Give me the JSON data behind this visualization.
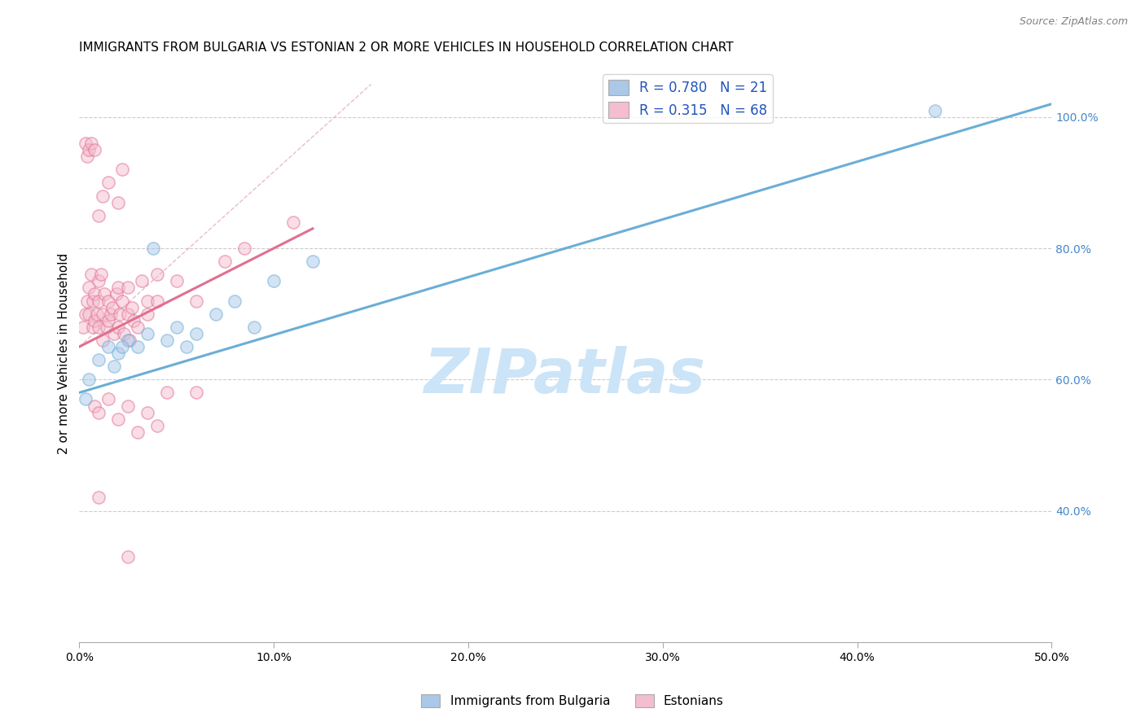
{
  "title": "IMMIGRANTS FROM BULGARIA VS ESTONIAN 2 OR MORE VEHICLES IN HOUSEHOLD CORRELATION CHART",
  "source": "Source: ZipAtlas.com",
  "ylabel": "2 or more Vehicles in Household",
  "x_min": 0.0,
  "x_max": 50.0,
  "y_min": 20.0,
  "y_max": 108.0,
  "x_ticks": [
    0.0,
    10.0,
    20.0,
    30.0,
    40.0,
    50.0
  ],
  "x_tick_labels": [
    "0.0%",
    "10.0%",
    "20.0%",
    "30.0%",
    "40.0%",
    "50.0%"
  ],
  "y_ticks_right": [
    40.0,
    60.0,
    80.0,
    100.0
  ],
  "y_tick_labels_right": [
    "40.0%",
    "60.0%",
    "80.0%",
    "100.0%"
  ],
  "legend_entries": [
    {
      "label": "R = 0.780   N = 21",
      "color": "#aac8e8"
    },
    {
      "label": "R = 0.315   N = 68",
      "color": "#f5bdd0"
    }
  ],
  "legend_bottom": [
    {
      "label": "Immigrants from Bulgaria",
      "color": "#aac8e8"
    },
    {
      "label": "Estonians",
      "color": "#f5bdd0"
    }
  ],
  "watermark": "ZIPatlas",
  "blue_scatter_x": [
    0.3,
    0.5,
    1.0,
    1.5,
    2.0,
    2.5,
    3.0,
    3.5,
    4.5,
    5.0,
    6.0,
    7.0,
    8.0,
    9.0,
    10.0,
    12.0,
    44.0,
    1.8,
    2.2,
    3.8,
    5.5
  ],
  "blue_scatter_y": [
    57.0,
    60.0,
    63.0,
    65.0,
    64.0,
    66.0,
    65.0,
    67.0,
    66.0,
    68.0,
    67.0,
    70.0,
    72.0,
    68.0,
    75.0,
    78.0,
    101.0,
    62.0,
    65.0,
    80.0,
    65.0
  ],
  "pink_scatter_x": [
    0.2,
    0.3,
    0.4,
    0.5,
    0.5,
    0.6,
    0.7,
    0.7,
    0.8,
    0.8,
    0.9,
    1.0,
    1.0,
    1.0,
    1.1,
    1.2,
    1.2,
    1.3,
    1.4,
    1.5,
    1.5,
    1.6,
    1.7,
    1.8,
    1.9,
    2.0,
    2.0,
    2.1,
    2.2,
    2.3,
    2.5,
    2.5,
    2.6,
    2.7,
    2.8,
    3.0,
    3.2,
    3.5,
    3.5,
    4.0,
    4.0,
    4.5,
    5.0,
    6.0,
    7.5,
    0.3,
    0.4,
    0.5,
    0.6,
    0.8,
    1.0,
    1.2,
    1.5,
    2.0,
    2.2,
    0.8,
    1.0,
    1.5,
    2.0,
    2.5,
    3.0,
    3.5,
    4.0,
    6.0,
    8.5,
    11.0,
    1.0,
    2.5
  ],
  "pink_scatter_y": [
    68.0,
    70.0,
    72.0,
    74.0,
    70.0,
    76.0,
    72.0,
    68.0,
    73.0,
    69.0,
    70.0,
    75.0,
    72.0,
    68.0,
    76.0,
    70.0,
    66.0,
    73.0,
    68.0,
    72.0,
    69.0,
    70.0,
    71.0,
    67.0,
    73.0,
    74.0,
    68.0,
    70.0,
    72.0,
    67.0,
    70.0,
    74.0,
    66.0,
    71.0,
    69.0,
    68.0,
    75.0,
    72.0,
    70.0,
    76.0,
    72.0,
    58.0,
    75.0,
    72.0,
    78.0,
    96.0,
    94.0,
    95.0,
    96.0,
    95.0,
    85.0,
    88.0,
    90.0,
    87.0,
    92.0,
    56.0,
    55.0,
    57.0,
    54.0,
    56.0,
    52.0,
    55.0,
    53.0,
    58.0,
    80.0,
    84.0,
    42.0,
    33.0
  ],
  "blue_line_x": [
    0.0,
    50.0
  ],
  "blue_line_y": [
    58.0,
    102.0
  ],
  "pink_line_x": [
    0.0,
    12.0
  ],
  "pink_line_y": [
    65.0,
    83.0
  ],
  "diag_line_x": [
    0.0,
    15.0
  ],
  "diag_line_y": [
    65.0,
    105.0
  ],
  "title_fontsize": 11,
  "axis_label_fontsize": 11,
  "tick_fontsize": 10,
  "scatter_size": 120,
  "scatter_alpha": 0.5,
  "grid_color": "#cccccc",
  "blue_color": "#6aaed6",
  "blue_fill": "#aac8e8",
  "pink_color": "#e07090",
  "pink_fill": "#f5bdd0",
  "watermark_color": "#cce4f7",
  "watermark_fontsize": 55
}
